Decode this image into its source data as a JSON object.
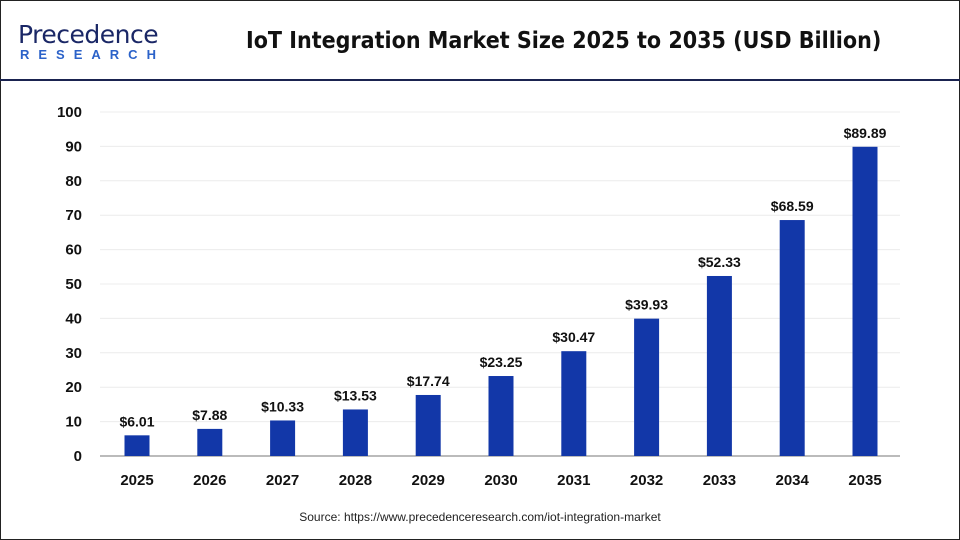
{
  "logo": {
    "line1": "Precedence",
    "line2": "RESEARCH"
  },
  "source": "Source: https://www.precedenceresearch.com/iot-integration-market",
  "colors": {
    "bar": "#1237a8",
    "header_line": "#1a2350",
    "logo_dark": "#1a2766",
    "logo_accent": "#2b62c9"
  },
  "chart_data": {
    "type": "bar",
    "title": "IoT Integration Market Size 2025 to 2035 (USD Billion)",
    "categories": [
      "2025",
      "2026",
      "2027",
      "2028",
      "2029",
      "2030",
      "2031",
      "2032",
      "2033",
      "2034",
      "2035"
    ],
    "values": [
      6.01,
      7.88,
      10.33,
      13.53,
      17.74,
      23.25,
      30.47,
      39.93,
      52.33,
      68.59,
      89.89
    ],
    "data_labels": [
      "$6.01",
      "$7.88",
      "$10.33",
      "$13.53",
      "$17.74",
      "$23.25",
      "$30.47",
      "$39.93",
      "$52.33",
      "$68.59",
      "$89.89"
    ],
    "yticks": [
      0,
      10,
      20,
      30,
      40,
      50,
      60,
      70,
      80,
      90,
      100
    ],
    "ylim": [
      0,
      100
    ],
    "xlabel": "",
    "ylabel": "",
    "grid": true,
    "legend": "none"
  }
}
